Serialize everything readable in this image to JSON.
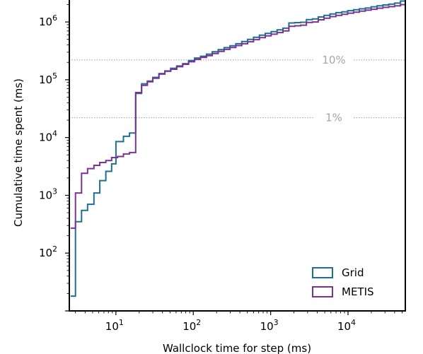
{
  "chart_data": {
    "type": "line",
    "title": "",
    "xlabel": "Wallclock time for step (ms)",
    "ylabel": "Cumulative time spent (ms)",
    "x_scale": "log",
    "y_scale": "log",
    "xlim": [
      2.5,
      55000
    ],
    "ylim": [
      10,
      2400000
    ],
    "x_ticks": [
      {
        "value": 10,
        "base": "10",
        "exp": "1"
      },
      {
        "value": 100,
        "base": "10",
        "exp": "2"
      },
      {
        "value": 1000,
        "base": "10",
        "exp": "3"
      },
      {
        "value": 10000,
        "base": "10",
        "exp": "4"
      }
    ],
    "y_ticks": [
      {
        "value": 100,
        "base": "10",
        "exp": "2"
      },
      {
        "value": 1000,
        "base": "10",
        "exp": "3"
      },
      {
        "value": 10000,
        "base": "10",
        "exp": "4"
      },
      {
        "value": 100000,
        "base": "10",
        "exp": "5"
      },
      {
        "value": 1000000,
        "base": "10",
        "exp": "6"
      }
    ],
    "reference_lines": [
      {
        "label": "10%",
        "y": 220000
      },
      {
        "label": "1%",
        "y": 22000
      }
    ],
    "legend": {
      "position": "bottom-right"
    },
    "grid": false,
    "series": [
      {
        "name": "Grid",
        "color": "#1f6f91",
        "points": [
          [
            2.6,
            18
          ],
          [
            3.0,
            18
          ],
          [
            3.0,
            350
          ],
          [
            3.6,
            350
          ],
          [
            3.6,
            550
          ],
          [
            4.3,
            550
          ],
          [
            4.3,
            700
          ],
          [
            5.2,
            700
          ],
          [
            5.2,
            1100
          ],
          [
            6.2,
            1100
          ],
          [
            6.2,
            1800
          ],
          [
            7.4,
            1800
          ],
          [
            7.4,
            2600
          ],
          [
            8.8,
            2600
          ],
          [
            8.8,
            3500
          ],
          [
            10.0,
            3500
          ],
          [
            10.0,
            8500
          ],
          [
            12.5,
            8500
          ],
          [
            12.5,
            10500
          ],
          [
            15.0,
            10500
          ],
          [
            15.0,
            12000
          ],
          [
            18.0,
            12000
          ],
          [
            18.0,
            58000
          ],
          [
            21.5,
            58000
          ],
          [
            21.5,
            85000
          ],
          [
            25.5,
            85000
          ],
          [
            25.5,
            95000
          ],
          [
            30.0,
            95000
          ],
          [
            30.0,
            110000
          ],
          [
            36.0,
            110000
          ],
          [
            36.0,
            128000
          ],
          [
            43.0,
            128000
          ],
          [
            43.0,
            142000
          ],
          [
            51.0,
            142000
          ],
          [
            51.0,
            158000
          ],
          [
            61.0,
            158000
          ],
          [
            61.0,
            173000
          ],
          [
            73.0,
            173000
          ],
          [
            73.0,
            190000
          ],
          [
            87.0,
            190000
          ],
          [
            87.0,
            215000
          ],
          [
            104.0,
            215000
          ],
          [
            104.0,
            238000
          ],
          [
            124.0,
            238000
          ],
          [
            124.0,
            255000
          ],
          [
            148.0,
            255000
          ],
          [
            148.0,
            278000
          ],
          [
            176.0,
            278000
          ],
          [
            176.0,
            305000
          ],
          [
            210.0,
            305000
          ],
          [
            210.0,
            332000
          ],
          [
            250.0,
            332000
          ],
          [
            250.0,
            360000
          ],
          [
            298.0,
            360000
          ],
          [
            298.0,
            388000
          ],
          [
            355.0,
            388000
          ],
          [
            355.0,
            420000
          ],
          [
            423.0,
            420000
          ],
          [
            423.0,
            458000
          ],
          [
            504.0,
            458000
          ],
          [
            504.0,
            500000
          ],
          [
            600.0,
            500000
          ],
          [
            600.0,
            545000
          ],
          [
            715.0,
            545000
          ],
          [
            715.0,
            590000
          ],
          [
            852.0,
            590000
          ],
          [
            852.0,
            635000
          ],
          [
            1015.0,
            635000
          ],
          [
            1015.0,
            680000
          ],
          [
            1210.0,
            680000
          ],
          [
            1210.0,
            730000
          ],
          [
            1440.0,
            730000
          ],
          [
            1440.0,
            780000
          ],
          [
            1720.0,
            780000
          ],
          [
            1720.0,
            960000
          ],
          [
            2050.0,
            960000
          ],
          [
            2050.0,
            975000
          ],
          [
            2440.0,
            975000
          ],
          [
            2440.0,
            990000
          ],
          [
            2900.0,
            990000
          ],
          [
            2900.0,
            1100000
          ],
          [
            3460.0,
            1100000
          ],
          [
            3460.0,
            1130000
          ],
          [
            4120.0,
            1130000
          ],
          [
            4120.0,
            1220000
          ],
          [
            4900.0,
            1220000
          ],
          [
            4900.0,
            1300000
          ],
          [
            5850.0,
            1300000
          ],
          [
            5850.0,
            1380000
          ],
          [
            6970.0,
            1380000
          ],
          [
            6970.0,
            1450000
          ],
          [
            8300.0,
            1450000
          ],
          [
            8300.0,
            1500000
          ],
          [
            9900.0,
            1500000
          ],
          [
            9900.0,
            1570000
          ],
          [
            11800.0,
            1570000
          ],
          [
            11800.0,
            1630000
          ],
          [
            14000.0,
            1630000
          ],
          [
            14000.0,
            1690000
          ],
          [
            16700.0,
            1690000
          ],
          [
            16700.0,
            1740000
          ],
          [
            19900.0,
            1740000
          ],
          [
            19900.0,
            1830000
          ],
          [
            23700.0,
            1830000
          ],
          [
            23700.0,
            1900000
          ],
          [
            28200.0,
            1900000
          ],
          [
            28200.0,
            1970000
          ],
          [
            33600.0,
            1970000
          ],
          [
            33600.0,
            2030000
          ],
          [
            40000.0,
            2030000
          ],
          [
            40000.0,
            2120000
          ],
          [
            47700.0,
            2120000
          ],
          [
            47700.0,
            2300000
          ],
          [
            55000.0,
            2300000
          ]
        ]
      },
      {
        "name": "METIS",
        "color": "#7b3294",
        "points": [
          [
            2.6,
            270
          ],
          [
            3.0,
            270
          ],
          [
            3.0,
            1100
          ],
          [
            3.6,
            1100
          ],
          [
            3.6,
            2400
          ],
          [
            4.3,
            2400
          ],
          [
            4.3,
            2900
          ],
          [
            5.2,
            2900
          ],
          [
            5.2,
            3300
          ],
          [
            6.2,
            3300
          ],
          [
            6.2,
            3700
          ],
          [
            7.4,
            3700
          ],
          [
            7.4,
            4000
          ],
          [
            8.8,
            4000
          ],
          [
            8.8,
            4500
          ],
          [
            10.5,
            4500
          ],
          [
            10.5,
            4700
          ],
          [
            12.5,
            4700
          ],
          [
            12.5,
            5200
          ],
          [
            15.0,
            5200
          ],
          [
            15.0,
            5500
          ],
          [
            18.0,
            5500
          ],
          [
            18.0,
            60000
          ],
          [
            21.5,
            60000
          ],
          [
            21.5,
            80000
          ],
          [
            25.5,
            80000
          ],
          [
            25.5,
            92000
          ],
          [
            30.0,
            92000
          ],
          [
            30.0,
            106000
          ],
          [
            36.0,
            106000
          ],
          [
            36.0,
            125000
          ],
          [
            43.0,
            125000
          ],
          [
            43.0,
            140000
          ],
          [
            51.0,
            140000
          ],
          [
            51.0,
            152000
          ],
          [
            61.0,
            152000
          ],
          [
            61.0,
            168000
          ],
          [
            73.0,
            168000
          ],
          [
            73.0,
            185000
          ],
          [
            87.0,
            185000
          ],
          [
            87.0,
            205000
          ],
          [
            104.0,
            205000
          ],
          [
            104.0,
            225000
          ],
          [
            124.0,
            225000
          ],
          [
            124.0,
            243000
          ],
          [
            148.0,
            243000
          ],
          [
            148.0,
            262000
          ],
          [
            176.0,
            262000
          ],
          [
            176.0,
            285000
          ],
          [
            210.0,
            285000
          ],
          [
            210.0,
            310000
          ],
          [
            250.0,
            310000
          ],
          [
            250.0,
            335000
          ],
          [
            298.0,
            335000
          ],
          [
            298.0,
            362000
          ],
          [
            355.0,
            362000
          ],
          [
            355.0,
            390000
          ],
          [
            423.0,
            390000
          ],
          [
            423.0,
            420000
          ],
          [
            504.0,
            420000
          ],
          [
            504.0,
            455000
          ],
          [
            600.0,
            455000
          ],
          [
            600.0,
            495000
          ],
          [
            715.0,
            495000
          ],
          [
            715.0,
            535000
          ],
          [
            852.0,
            535000
          ],
          [
            852.0,
            575000
          ],
          [
            1015.0,
            575000
          ],
          [
            1015.0,
            615000
          ],
          [
            1210.0,
            615000
          ],
          [
            1210.0,
            655000
          ],
          [
            1440.0,
            655000
          ],
          [
            1440.0,
            700000
          ],
          [
            1720.0,
            700000
          ],
          [
            1720.0,
            840000
          ],
          [
            2050.0,
            840000
          ],
          [
            2050.0,
            860000
          ],
          [
            2440.0,
            860000
          ],
          [
            2440.0,
            880000
          ],
          [
            2900.0,
            880000
          ],
          [
            2900.0,
            980000
          ],
          [
            3460.0,
            980000
          ],
          [
            3460.0,
            1000000
          ],
          [
            4120.0,
            1000000
          ],
          [
            4120.0,
            1090000
          ],
          [
            4900.0,
            1090000
          ],
          [
            4900.0,
            1160000
          ],
          [
            5850.0,
            1160000
          ],
          [
            5850.0,
            1240000
          ],
          [
            6970.0,
            1240000
          ],
          [
            6970.0,
            1300000
          ],
          [
            8300.0,
            1300000
          ],
          [
            8300.0,
            1360000
          ],
          [
            9900.0,
            1360000
          ],
          [
            9900.0,
            1420000
          ],
          [
            11800.0,
            1420000
          ],
          [
            11800.0,
            1480000
          ],
          [
            14000.0,
            1480000
          ],
          [
            14000.0,
            1540000
          ],
          [
            16700.0,
            1540000
          ],
          [
            16700.0,
            1600000
          ],
          [
            19900.0,
            1600000
          ],
          [
            19900.0,
            1660000
          ],
          [
            23700.0,
            1660000
          ],
          [
            23700.0,
            1730000
          ],
          [
            28200.0,
            1730000
          ],
          [
            28200.0,
            1790000
          ],
          [
            33600.0,
            1790000
          ],
          [
            33600.0,
            1840000
          ],
          [
            40000.0,
            1840000
          ],
          [
            40000.0,
            1900000
          ],
          [
            47700.0,
            1900000
          ],
          [
            47700.0,
            2000000
          ],
          [
            55000.0,
            2000000
          ]
        ]
      }
    ]
  }
}
